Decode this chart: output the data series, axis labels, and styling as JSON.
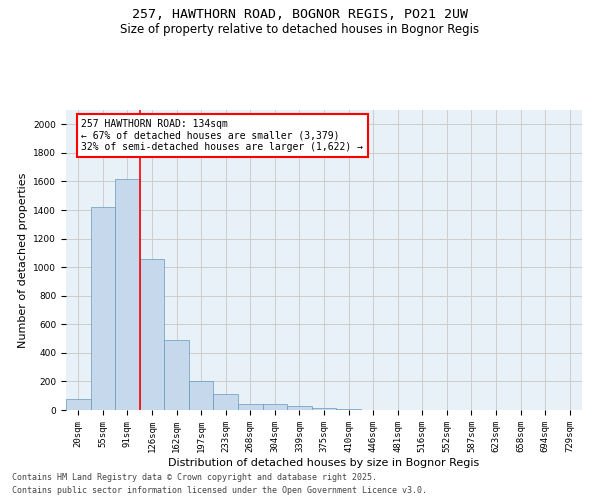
{
  "title_line1": "257, HAWTHORN ROAD, BOGNOR REGIS, PO21 2UW",
  "title_line2": "Size of property relative to detached houses in Bognor Regis",
  "xlabel": "Distribution of detached houses by size in Bognor Regis",
  "ylabel": "Number of detached properties",
  "categories": [
    "20sqm",
    "55sqm",
    "91sqm",
    "126sqm",
    "162sqm",
    "197sqm",
    "233sqm",
    "268sqm",
    "304sqm",
    "339sqm",
    "375sqm",
    "410sqm",
    "446sqm",
    "481sqm",
    "516sqm",
    "552sqm",
    "587sqm",
    "623sqm",
    "658sqm",
    "694sqm",
    "729sqm"
  ],
  "values": [
    80,
    1420,
    1620,
    1060,
    490,
    205,
    110,
    45,
    40,
    25,
    15,
    8,
    0,
    0,
    0,
    0,
    0,
    0,
    0,
    0,
    0
  ],
  "bar_color": "#c5d8ec",
  "bar_edge_color": "#6699bb",
  "vline_x_index": 3,
  "vline_color": "red",
  "annotation_text": "257 HAWTHORN ROAD: 134sqm\n← 67% of detached houses are smaller (3,379)\n32% of semi-detached houses are larger (1,622) →",
  "annotation_box_color": "white",
  "annotation_box_edge_color": "red",
  "ylim": [
    0,
    2100
  ],
  "yticks": [
    0,
    200,
    400,
    600,
    800,
    1000,
    1200,
    1400,
    1600,
    1800,
    2000
  ],
  "grid_color": "#cccccc",
  "background_color": "#e8f0f8",
  "footer_line1": "Contains HM Land Registry data © Crown copyright and database right 2025.",
  "footer_line2": "Contains public sector information licensed under the Open Government Licence v3.0.",
  "title_fontsize": 9.5,
  "subtitle_fontsize": 8.5,
  "axis_label_fontsize": 8,
  "tick_fontsize": 6.5,
  "annotation_fontsize": 7,
  "footer_fontsize": 6
}
